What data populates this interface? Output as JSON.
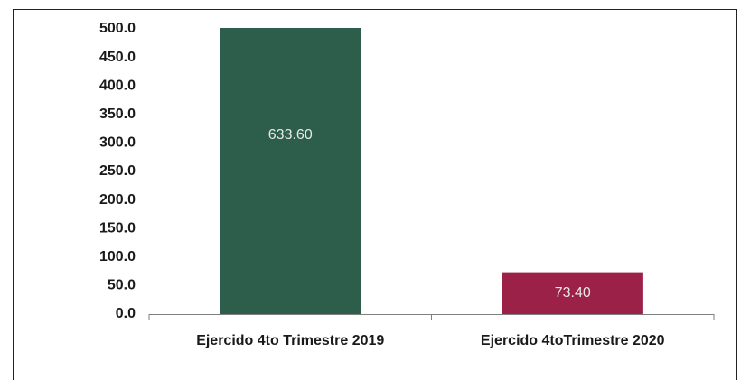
{
  "chart_data": {
    "type": "bar",
    "categories": [
      "Ejercido 4to Trimestre 2019",
      "Ejercido 4toTrimestre 2020"
    ],
    "values": [
      633.6,
      73.4
    ],
    "value_labels": [
      "633.60",
      "73.40"
    ],
    "colors": [
      "#2d5e4b",
      "#9b2148"
    ],
    "ylim": [
      0,
      500
    ],
    "yticks": [
      {
        "value": 0,
        "label": "0.0"
      },
      {
        "value": 50,
        "label": "50.0"
      },
      {
        "value": 100,
        "label": "100.0"
      },
      {
        "value": 150,
        "label": "150.0"
      },
      {
        "value": 200,
        "label": "200.0"
      },
      {
        "value": 250,
        "label": "250.0"
      },
      {
        "value": 300,
        "label": "300.0"
      },
      {
        "value": 350,
        "label": "350.0"
      },
      {
        "value": 400,
        "label": "400.0"
      },
      {
        "value": 450,
        "label": "450.0"
      },
      {
        "value": 500,
        "label": "500.0"
      }
    ],
    "grid": false
  }
}
